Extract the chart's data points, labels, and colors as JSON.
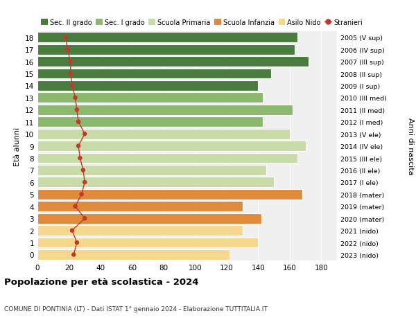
{
  "ages": [
    0,
    1,
    2,
    3,
    4,
    5,
    6,
    7,
    8,
    9,
    10,
    11,
    12,
    13,
    14,
    15,
    16,
    17,
    18
  ],
  "years": [
    "2023 (nido)",
    "2022 (nido)",
    "2021 (nido)",
    "2020 (mater)",
    "2019 (mater)",
    "2018 (mater)",
    "2017 (I ele)",
    "2016 (II ele)",
    "2015 (III ele)",
    "2014 (IV ele)",
    "2013 (V ele)",
    "2012 (I med)",
    "2011 (II med)",
    "2010 (III med)",
    "2009 (I sup)",
    "2008 (II sup)",
    "2007 (III sup)",
    "2006 (IV sup)",
    "2005 (V sup)"
  ],
  "values": [
    122,
    140,
    130,
    142,
    130,
    168,
    150,
    145,
    165,
    170,
    160,
    143,
    162,
    143,
    140,
    148,
    172,
    163,
    165
  ],
  "stranieri": [
    23,
    25,
    22,
    30,
    24,
    28,
    30,
    29,
    27,
    26,
    30,
    26,
    25,
    24,
    22,
    21,
    21,
    19,
    18
  ],
  "bar_colors": [
    "#f5d78e",
    "#f5d78e",
    "#f5d78e",
    "#e08a3c",
    "#e08a3c",
    "#e08a3c",
    "#c8dba8",
    "#c8dba8",
    "#c8dba8",
    "#c8dba8",
    "#c8dba8",
    "#8db870",
    "#8db870",
    "#8db870",
    "#4a7c40",
    "#4a7c40",
    "#4a7c40",
    "#4a7c40",
    "#4a7c40"
  ],
  "legend_labels": [
    "Sec. II grado",
    "Sec. I grado",
    "Scuola Primaria",
    "Scuola Infanzia",
    "Asilo Nido",
    "Stranieri"
  ],
  "legend_colors": [
    "#4a7c40",
    "#8db870",
    "#c8dba8",
    "#e08a3c",
    "#f5d78e",
    "#c0392b"
  ],
  "title": "Popolazione per età scolastica - 2024",
  "subtitle": "COMUNE DI PONTINIA (LT) - Dati ISTAT 1° gennaio 2024 - Elaborazione TUTTITALIA.IT",
  "ylabel": "Età alunni",
  "ylabel2": "Anni di nascita",
  "xlim": [
    0,
    190
  ],
  "xticks": [
    0,
    20,
    40,
    60,
    80,
    100,
    120,
    140,
    160,
    180
  ],
  "stranieri_color": "#c0392b",
  "bg_color": "#ffffff",
  "plot_bg_color": "#f0f0f0"
}
